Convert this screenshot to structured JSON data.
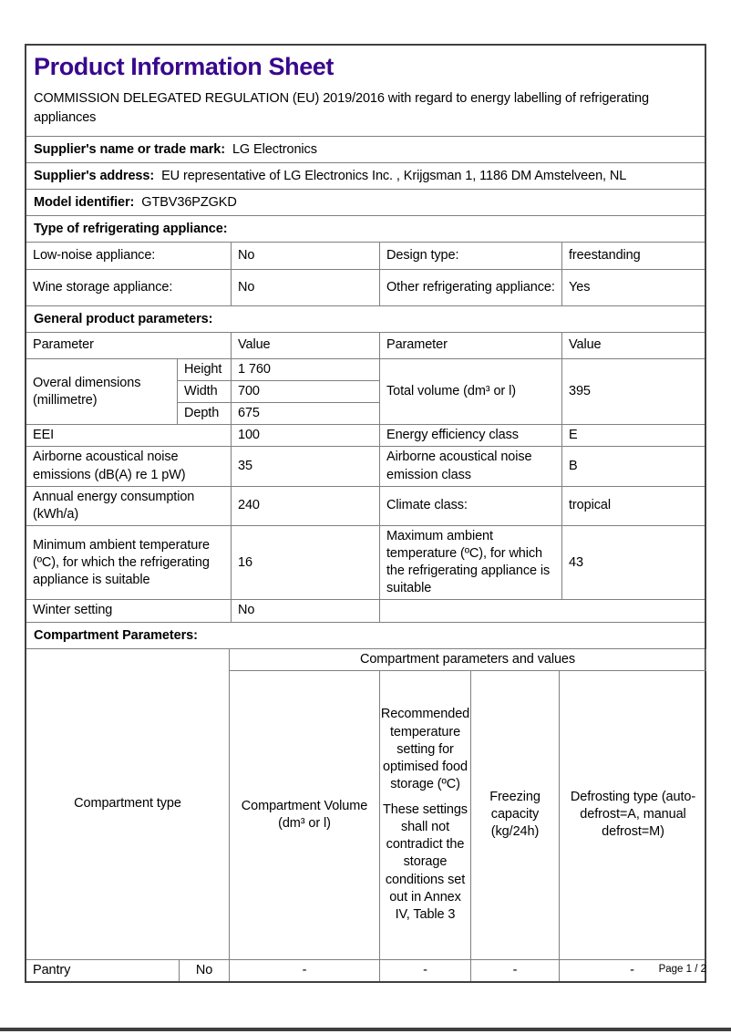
{
  "colors": {
    "title_accent": "#38088c",
    "inner_border": "#7f7f7f",
    "outer_border": "#404040"
  },
  "header": {
    "title": "Product Information Sheet",
    "regulation": "COMMISSION DELEGATED REGULATION (EU) 2019/2016 with regard to energy labelling of refrigerating appliances"
  },
  "supplier": {
    "name_label": "Supplier's name or trade mark:",
    "name_value": "LG Electronics",
    "address_label": "Supplier's address:",
    "address_value": "EU representative of LG Electronics Inc. , Krijgsman 1, 1186 DM Amstelveen, NL",
    "model_label": "Model identifier:",
    "model_value": "GTBV36PZGKD"
  },
  "type_section": {
    "heading": "Type of refrigerating appliance:",
    "rows": [
      {
        "p1": "Low-noise appliance:",
        "v1": "No",
        "p2": "Design type:",
        "v2": "freestanding"
      },
      {
        "p1": "Wine storage appliance:",
        "v1": "No",
        "p2": "Other refrigerating appliance:",
        "v2": "Yes"
      }
    ]
  },
  "general_section": {
    "heading": "General product parameters:",
    "header_row": {
      "p1": "Parameter",
      "v1": "Value",
      "p2": "Parameter",
      "v2": "Value"
    },
    "dimensions": {
      "label": "Overal dimensions (millimetre)",
      "height_label": "Height",
      "height_value": "1 760",
      "width_label": "Width",
      "width_value": "700",
      "depth_label": "Depth",
      "depth_value": "675",
      "right_param": "Total volume (dm³ or l)",
      "right_value": "395"
    },
    "rows": [
      {
        "p1": "EEI",
        "v1": "100",
        "p2": "Energy efficiency class",
        "v2": "E"
      },
      {
        "p1": "Airborne acoustical noise emissions (dB(A) re 1 pW)",
        "v1": "35",
        "p2": "Airborne acoustical noise emission class",
        "v2": "B"
      },
      {
        "p1": "Annual energy consumption (kWh/a)",
        "v1": "240",
        "p2": "Climate class:",
        "v2": "tropical"
      },
      {
        "p1": "Minimum ambient temperature (ºC), for which the refrigerating appliance is suitable",
        "v1": "16",
        "p2": "Maximum ambient temperature (ºC), for which the refrigerating appliance is suitable",
        "v2": "43"
      }
    ],
    "winter_row": {
      "label": "Winter setting",
      "value": "No"
    }
  },
  "compartment_section": {
    "heading": "Compartment Parameters:",
    "group_header": "Compartment parameters and values",
    "columns": {
      "type": "Compartment type",
      "volume": "Compartment Volume (dm³ or l)",
      "temp_line1": "Recommended temperature setting for optimised food storage (ºC)",
      "temp_line2": "These settings shall not contradict the storage conditions set out in Annex IV, Table 3",
      "freezing": "Freezing capacity (kg/24h)",
      "defrost": "Defrosting type (auto-defrost=A, manual defrost=M)"
    },
    "rows": [
      {
        "type": "Pantry",
        "present": "No",
        "volume": "-",
        "temp": "-",
        "freezing": "-",
        "defrost": "-"
      }
    ]
  },
  "footer": {
    "page_label": "Page 1 / 2"
  }
}
